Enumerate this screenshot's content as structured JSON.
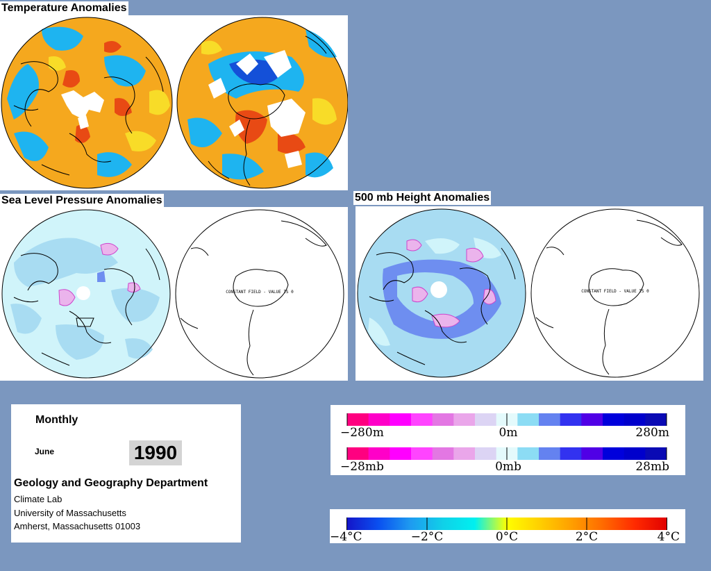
{
  "panels": {
    "temperature": {
      "title": "Temperature Anomalies"
    },
    "slp": {
      "title": "Sea Level Pressure Anomalies",
      "south_label": "CONSTANT FIELD - VALUE IS 0"
    },
    "height500": {
      "title": "500 mb Height Anomalies",
      "south_label": "CONSTANT FIELD - VALUE IS 0"
    }
  },
  "info": {
    "period": "Monthly",
    "month": "June",
    "year": "1990",
    "department": "Geology and Geography Department",
    "lab": "Climate Lab",
    "university": "University of Massachusetts",
    "address": "Amherst, Massachusetts 01003"
  },
  "legends": {
    "height": {
      "labels": [
        "−280m",
        "0m",
        "280m"
      ],
      "colors": [
        "#ff0080",
        "#ff00c8",
        "#ff00ff",
        "#ff44ff",
        "#e377e3",
        "#eaa6ea",
        "#dcd4f4",
        "#e4fafc",
        "#8cdcf4",
        "#6482f0",
        "#3232f0",
        "#5000e6",
        "#0000dc",
        "#0000cc",
        "#0a0ab4"
      ]
    },
    "pressure": {
      "labels": [
        "−28mb",
        "0mb",
        "28mb"
      ],
      "colors": [
        "#ff0080",
        "#ff00c8",
        "#ff00ff",
        "#ff44ff",
        "#e377e3",
        "#eaa6ea",
        "#dcd4f4",
        "#e4fafc",
        "#8cdcf4",
        "#6482f0",
        "#3232f0",
        "#5000e6",
        "#0000dc",
        "#0000cc",
        "#0a0ab4"
      ]
    },
    "temperature": {
      "labels": [
        "−4°C",
        "−2°C",
        "0°C",
        "2°C",
        "4°C"
      ],
      "gradient_stops": [
        "#1414c8",
        "#0a50f0",
        "#1e9bf0",
        "#10d0e8",
        "#00f0f0",
        "#ffff00",
        "#ffd000",
        "#ffa000",
        "#ff6a00",
        "#ff2a00",
        "#e00000"
      ]
    }
  },
  "map_colors": {
    "temp_base": "#f5a81e",
    "temp_blue": "#1eb4f0",
    "temp_red": "#e84a14",
    "temp_yellow": "#f8dc28",
    "temp_deepblue": "#1450d8",
    "anom_light": "#d0f4fa",
    "anom_blue": "#a8dcf2",
    "anom_purple": "#ebb4ec",
    "anom_dblue": "#6e8ef0"
  }
}
